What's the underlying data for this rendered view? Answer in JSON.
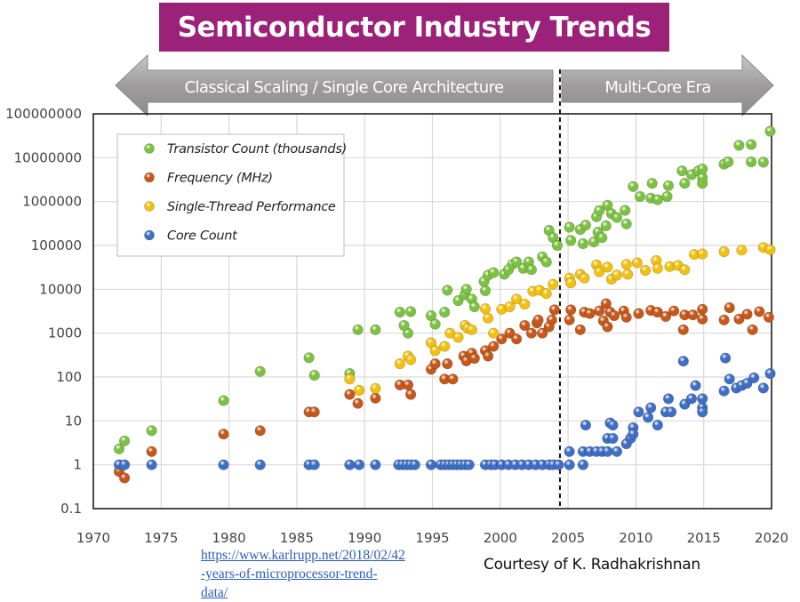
{
  "title": "Semiconductor Industry Trends",
  "eras": {
    "left_label": "Classical Scaling / Single Core Architecture",
    "right_label": "Multi-Core Era",
    "divider_year": 2004.4
  },
  "source": {
    "link_line1": "https://www.karlrupp.net/2018/02/42",
    "link_line2": "-years-of-microprocessor-trend-data/",
    "credit": "Courtesy of K. Radhakrishnan"
  },
  "chart_data": {
    "type": "scatter",
    "title": "Semiconductor Industry Trends",
    "xlabel": "",
    "ylabel": "",
    "xlim": [
      1970,
      2020
    ],
    "ylim": [
      0.1,
      100000000
    ],
    "yscale": "log",
    "grid": true,
    "legend_position": "top-left",
    "x_ticks": [
      "1970",
      "1975",
      "1980",
      "1985",
      "1990",
      "1995",
      "2000",
      "2005",
      "2010",
      "2015",
      "2020"
    ],
    "y_ticks": [
      "100000000",
      "10000000",
      "1000000",
      "100000",
      "10000",
      "1000",
      "100",
      "10",
      "1",
      "0.1"
    ],
    "series": [
      {
        "name": "Transistor Count (thousands)",
        "color": "#7cc242",
        "points": [
          [
            1971.9,
            2.3
          ],
          [
            1972.3,
            3.5
          ],
          [
            1974.3,
            6
          ],
          [
            1979.6,
            29
          ],
          [
            1982.3,
            134
          ],
          [
            1985.9,
            275
          ],
          [
            1986.3,
            110
          ],
          [
            1988.9,
            120
          ],
          [
            1989.5,
            1200
          ],
          [
            1990.8,
            1200
          ],
          [
            1992.6,
            3000
          ],
          [
            1993.2,
            1000
          ],
          [
            1993.4,
            3100
          ],
          [
            1992.9,
            1500
          ],
          [
            1994.9,
            2500
          ],
          [
            1995.2,
            1600
          ],
          [
            1995.9,
            3000
          ],
          [
            1996.1,
            9500
          ],
          [
            1996.9,
            5500
          ],
          [
            1997.4,
            7500
          ],
          [
            1997.5,
            10000
          ],
          [
            1997.9,
            6000
          ],
          [
            1998.1,
            4000
          ],
          [
            1998.9,
            9300
          ],
          [
            1998.8,
            15000
          ],
          [
            1999.1,
            21000
          ],
          [
            1999.5,
            24000
          ],
          [
            2000.3,
            22000
          ],
          [
            2000.6,
            28000
          ],
          [
            2000.9,
            37000
          ],
          [
            2001.2,
            42000
          ],
          [
            2001.7,
            30000
          ],
          [
            2002.1,
            42000
          ],
          [
            2002.3,
            28000
          ],
          [
            2003.1,
            55000
          ],
          [
            2003.4,
            42000
          ],
          [
            2003.6,
            220000
          ],
          [
            2003.9,
            150000
          ],
          [
            2004.2,
            100000
          ],
          [
            2005.1,
            260000
          ],
          [
            2005.2,
            130000
          ],
          [
            2005.9,
            230000
          ],
          [
            2006.1,
            110000
          ],
          [
            2006.3,
            290000
          ],
          [
            2006.9,
            120000
          ],
          [
            2007.1,
            450000
          ],
          [
            2007.2,
            200000
          ],
          [
            2007.3,
            620000
          ],
          [
            2007.5,
            150000
          ],
          [
            2007.8,
            280000
          ],
          [
            2007.9,
            820000
          ],
          [
            2008.2,
            530000
          ],
          [
            2008.6,
            430000
          ],
          [
            2009.2,
            630000
          ],
          [
            2009.3,
            310000
          ],
          [
            2009.8,
            2200000
          ],
          [
            2010.3,
            1300000
          ],
          [
            2011.1,
            1200000
          ],
          [
            2011.2,
            2600000
          ],
          [
            2011.6,
            1100000
          ],
          [
            2012.3,
            1300000
          ],
          [
            2012.4,
            2300000
          ],
          [
            2013.4,
            5000000
          ],
          [
            2013.6,
            2600000
          ],
          [
            2014.1,
            4100000
          ],
          [
            2014.6,
            5000000
          ],
          [
            2014.9,
            2600000
          ],
          [
            2014.9,
            3500000
          ],
          [
            2014.9,
            5500000
          ],
          [
            2016.5,
            7100000
          ],
          [
            2016.8,
            8000000
          ],
          [
            2017.6,
            19200000
          ],
          [
            2018.5,
            20000000
          ],
          [
            2018.5,
            8000000
          ],
          [
            2019.4,
            7900000
          ],
          [
            2019.9,
            40000000
          ]
        ]
      },
      {
        "name": "Frequency (MHz)",
        "color": "#c5581a",
        "points": [
          [
            1971.9,
            0.7
          ],
          [
            1972.3,
            0.5
          ],
          [
            1974.3,
            2
          ],
          [
            1979.6,
            5
          ],
          [
            1982.3,
            6
          ],
          [
            1985.9,
            16
          ],
          [
            1986.3,
            16
          ],
          [
            1988.9,
            40
          ],
          [
            1989.5,
            25
          ],
          [
            1990.8,
            33
          ],
          [
            1992.6,
            66
          ],
          [
            1993.2,
            66
          ],
          [
            1993.4,
            40
          ],
          [
            1994.9,
            150
          ],
          [
            1995.2,
            200
          ],
          [
            1995.9,
            90
          ],
          [
            1996.1,
            200
          ],
          [
            1996.5,
            90
          ],
          [
            1997.3,
            300
          ],
          [
            1997.5,
            233
          ],
          [
            1997.9,
            350
          ],
          [
            1998.1,
            266
          ],
          [
            1998.9,
            400
          ],
          [
            1999.1,
            300
          ],
          [
            1999.5,
            500
          ],
          [
            2000.1,
            733
          ],
          [
            2000.7,
            1000
          ],
          [
            2001.2,
            733
          ],
          [
            2001.8,
            1500
          ],
          [
            2002.3,
            1000
          ],
          [
            2002.7,
            1700
          ],
          [
            2002.8,
            2000
          ],
          [
            2003.1,
            1000
          ],
          [
            2003.6,
            1400
          ],
          [
            2003.8,
            2000
          ],
          [
            2004.0,
            3400
          ],
          [
            2005.1,
            2000
          ],
          [
            2005.2,
            3400
          ],
          [
            2005.9,
            1200
          ],
          [
            2006.2,
            3000
          ],
          [
            2006.6,
            2800
          ],
          [
            2007.3,
            3200
          ],
          [
            2007.6,
            1900
          ],
          [
            2007.8,
            4700
          ],
          [
            2007.9,
            1400
          ],
          [
            2008.1,
            3000
          ],
          [
            2008.4,
            2500
          ],
          [
            2009.1,
            3200
          ],
          [
            2009.3,
            2300
          ],
          [
            2010.2,
            2800
          ],
          [
            2011.1,
            3300
          ],
          [
            2011.6,
            3000
          ],
          [
            2012.2,
            2400
          ],
          [
            2012.8,
            3200
          ],
          [
            2013.5,
            1200
          ],
          [
            2013.6,
            2600
          ],
          [
            2014.2,
            2600
          ],
          [
            2014.9,
            2100
          ],
          [
            2014.9,
            3500
          ],
          [
            2016.5,
            2000
          ],
          [
            2016.9,
            3800
          ],
          [
            2017.6,
            2100
          ],
          [
            2018.2,
            2700
          ],
          [
            2018.6,
            1200
          ],
          [
            2019.1,
            3100
          ],
          [
            2019.8,
            2300
          ]
        ]
      },
      {
        "name": "Single-Thread Performance",
        "color": "#f2c10f",
        "points": [
          [
            1988.9,
            90
          ],
          [
            1989.6,
            50
          ],
          [
            1990.8,
            55
          ],
          [
            1992.6,
            200
          ],
          [
            1993.2,
            300
          ],
          [
            1993.4,
            250
          ],
          [
            1994.9,
            600
          ],
          [
            1995.2,
            400
          ],
          [
            1995.9,
            500
          ],
          [
            1996.3,
            1000
          ],
          [
            1996.9,
            800
          ],
          [
            1997.4,
            1500
          ],
          [
            1997.6,
            1300
          ],
          [
            1997.9,
            1200
          ],
          [
            1998.9,
            3600
          ],
          [
            1999.1,
            2200
          ],
          [
            1999.5,
            1000
          ],
          [
            2000.1,
            3500
          ],
          [
            2000.7,
            4000
          ],
          [
            2001.2,
            6000
          ],
          [
            2001.8,
            4600
          ],
          [
            2002.4,
            9000
          ],
          [
            2002.9,
            9500
          ],
          [
            2003.4,
            8000
          ],
          [
            2003.9,
            13000
          ],
          [
            2005.1,
            18000
          ],
          [
            2005.2,
            14000
          ],
          [
            2005.9,
            22000
          ],
          [
            2006.2,
            18000
          ],
          [
            2007.1,
            36000
          ],
          [
            2007.3,
            25000
          ],
          [
            2007.9,
            32000
          ],
          [
            2008.2,
            17000
          ],
          [
            2008.6,
            21000
          ],
          [
            2009.3,
            37000
          ],
          [
            2009.4,
            22000
          ],
          [
            2010.1,
            40000
          ],
          [
            2010.7,
            27000
          ],
          [
            2011.5,
            45000
          ],
          [
            2011.6,
            30000
          ],
          [
            2012.5,
            33000
          ],
          [
            2013.1,
            35000
          ],
          [
            2013.6,
            28000
          ],
          [
            2014.3,
            62000
          ],
          [
            2014.9,
            64000
          ],
          [
            2016.5,
            72000
          ],
          [
            2017.8,
            78000
          ],
          [
            2019.4,
            90000
          ],
          [
            2019.9,
            80000
          ]
        ]
      },
      {
        "name": "Core Count",
        "color": "#3f6fc4",
        "points": [
          [
            1971.9,
            1
          ],
          [
            1972.3,
            1
          ],
          [
            1974.3,
            1
          ],
          [
            1979.6,
            1
          ],
          [
            1982.3,
            1
          ],
          [
            1985.9,
            1
          ],
          [
            1986.3,
            1
          ],
          [
            1988.9,
            1
          ],
          [
            1989.6,
            1
          ],
          [
            1990.8,
            1
          ],
          [
            1992.5,
            1
          ],
          [
            1992.8,
            1
          ],
          [
            1993.1,
            1
          ],
          [
            1993.4,
            1
          ],
          [
            1993.7,
            1
          ],
          [
            1994.9,
            1
          ],
          [
            1995.6,
            1
          ],
          [
            1995.9,
            1
          ],
          [
            1996.2,
            1
          ],
          [
            1996.5,
            1
          ],
          [
            1996.8,
            1
          ],
          [
            1997.1,
            1
          ],
          [
            1997.4,
            1
          ],
          [
            1997.7,
            1
          ],
          [
            1998.9,
            1
          ],
          [
            1999.3,
            1
          ],
          [
            1999.6,
            1
          ],
          [
            2000.1,
            1
          ],
          [
            2000.6,
            1
          ],
          [
            2001.1,
            1
          ],
          [
            2001.6,
            1
          ],
          [
            2002.1,
            1
          ],
          [
            2002.6,
            1
          ],
          [
            2003.1,
            1
          ],
          [
            2003.6,
            1
          ],
          [
            2003.9,
            1
          ],
          [
            2004.3,
            1
          ],
          [
            2005.1,
            1
          ],
          [
            2005.1,
            2
          ],
          [
            2006.1,
            1
          ],
          [
            2006.1,
            2
          ],
          [
            2006.3,
            8
          ],
          [
            2006.6,
            2
          ],
          [
            2007.1,
            2
          ],
          [
            2007.5,
            2
          ],
          [
            2007.9,
            2
          ],
          [
            2007.9,
            4
          ],
          [
            2008.1,
            9
          ],
          [
            2008.3,
            8
          ],
          [
            2008.3,
            4
          ],
          [
            2008.6,
            2
          ],
          [
            2009.3,
            3
          ],
          [
            2009.6,
            4
          ],
          [
            2009.8,
            7
          ],
          [
            2009.8,
            5
          ],
          [
            2010.2,
            16
          ],
          [
            2010.9,
            12
          ],
          [
            2011.1,
            20
          ],
          [
            2011.6,
            8
          ],
          [
            2012.2,
            16
          ],
          [
            2012.4,
            32
          ],
          [
            2012.6,
            16
          ],
          [
            2013.5,
            230
          ],
          [
            2013.6,
            24
          ],
          [
            2014.1,
            32
          ],
          [
            2014.4,
            64
          ],
          [
            2014.9,
            20
          ],
          [
            2014.9,
            32
          ],
          [
            2014.9,
            16
          ],
          [
            2016.5,
            48
          ],
          [
            2016.6,
            270
          ],
          [
            2016.9,
            90
          ],
          [
            2017.4,
            56
          ],
          [
            2017.8,
            64
          ],
          [
            2018.2,
            72
          ],
          [
            2018.7,
            96
          ],
          [
            2019.4,
            56
          ],
          [
            2019.9,
            120
          ]
        ]
      }
    ]
  }
}
